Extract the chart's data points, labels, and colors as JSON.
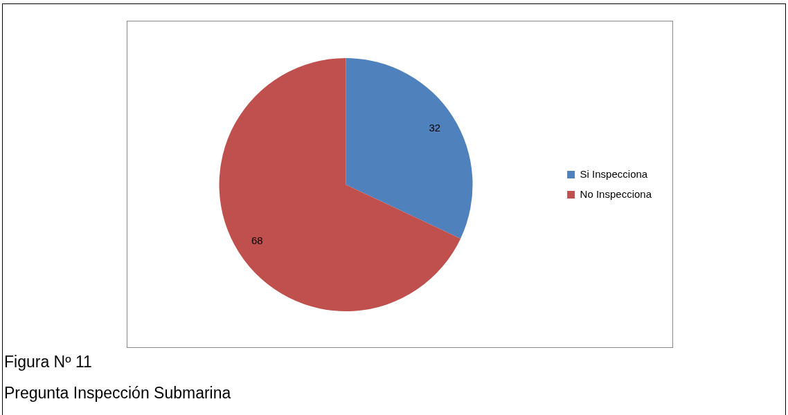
{
  "chart_data": {
    "type": "pie",
    "categories": [
      "Si Inspecciona",
      "No Inspecciona"
    ],
    "values": [
      32,
      68
    ],
    "colors": [
      "#4f81bd",
      "#c0504d"
    ],
    "data_labels": true,
    "legend": "right",
    "annotations": [
      "Figura Nº 11",
      "Pregunta Inspección Submarina"
    ]
  }
}
